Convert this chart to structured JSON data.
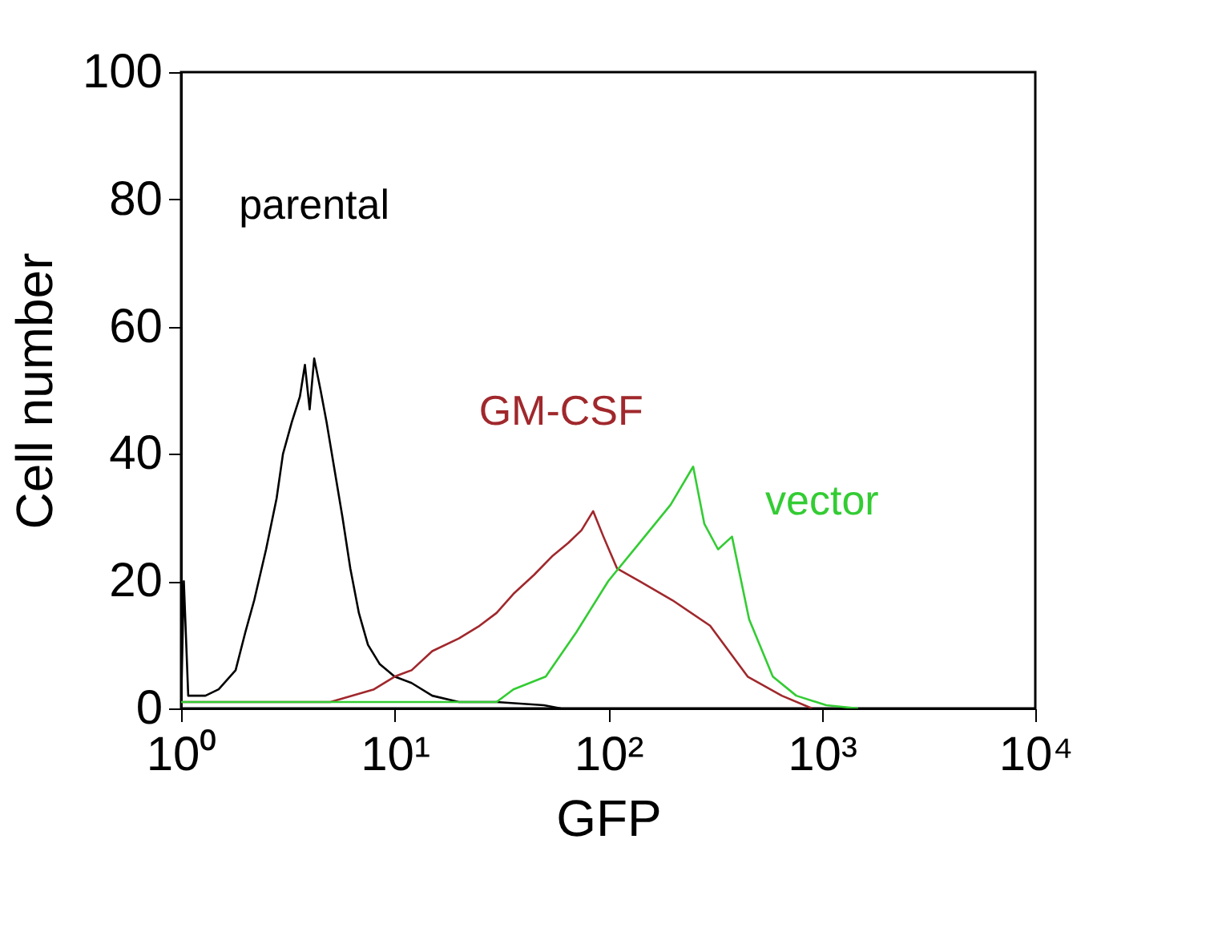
{
  "chart_data": {
    "type": "line",
    "xlabel": "GFP",
    "ylabel": "Cell number",
    "log": "x",
    "xlim": [
      1,
      10000
    ],
    "xticks": [
      {
        "value": 1,
        "label": "10⁰"
      },
      {
        "value": 10,
        "label": "10¹"
      },
      {
        "value": 100,
        "label": "10²"
      },
      {
        "value": 1000,
        "label": "10³"
      },
      {
        "value": 10000,
        "label": "10⁴"
      }
    ],
    "ylim": [
      0,
      100
    ],
    "yticks": [
      0,
      20,
      40,
      60,
      80,
      100
    ],
    "grid": false,
    "marker": "none",
    "line_style": "solid",
    "series": [
      {
        "name": "parental",
        "color": "#000000",
        "x": [
          1,
          1.03,
          1.08,
          1.3,
          1.5,
          1.8,
          2.0,
          2.2,
          2.5,
          2.8,
          3.0,
          3.3,
          3.6,
          3.8,
          4.0,
          4.2,
          4.5,
          4.8,
          5.2,
          5.7,
          6.2,
          6.8,
          7.5,
          8.5,
          10,
          12,
          15,
          20,
          30,
          50,
          60
        ],
        "values": [
          0,
          20,
          2,
          2,
          3,
          6,
          12,
          17,
          25,
          33,
          40,
          45,
          49,
          54,
          47,
          55,
          50,
          45,
          38,
          30,
          22,
          15,
          10,
          7,
          5,
          4,
          2,
          1,
          1,
          0.5,
          0
        ]
      },
      {
        "name": "GM-CSF",
        "color": "#a0282c",
        "x": [
          1,
          5,
          8,
          10,
          12,
          15,
          20,
          25,
          30,
          36,
          45,
          55,
          65,
          75,
          85,
          95,
          110,
          140,
          200,
          300,
          450,
          650,
          900
        ],
        "values": [
          1,
          1,
          3,
          5,
          6,
          9,
          11,
          13,
          15,
          18,
          21,
          24,
          26,
          28,
          31,
          27,
          22,
          20,
          17,
          13,
          5,
          2,
          0
        ]
      },
      {
        "name": "vector",
        "color": "#33cc33",
        "x": [
          1,
          10,
          30,
          36,
          51,
          71,
          100,
          140,
          196,
          250,
          282,
          327,
          380,
          457,
          590,
          760,
          1050,
          1480
        ],
        "values": [
          1,
          1,
          1,
          3,
          5,
          12,
          20,
          26,
          32,
          38,
          29,
          25,
          27,
          14,
          5,
          2,
          0.5,
          0
        ]
      }
    ]
  }
}
